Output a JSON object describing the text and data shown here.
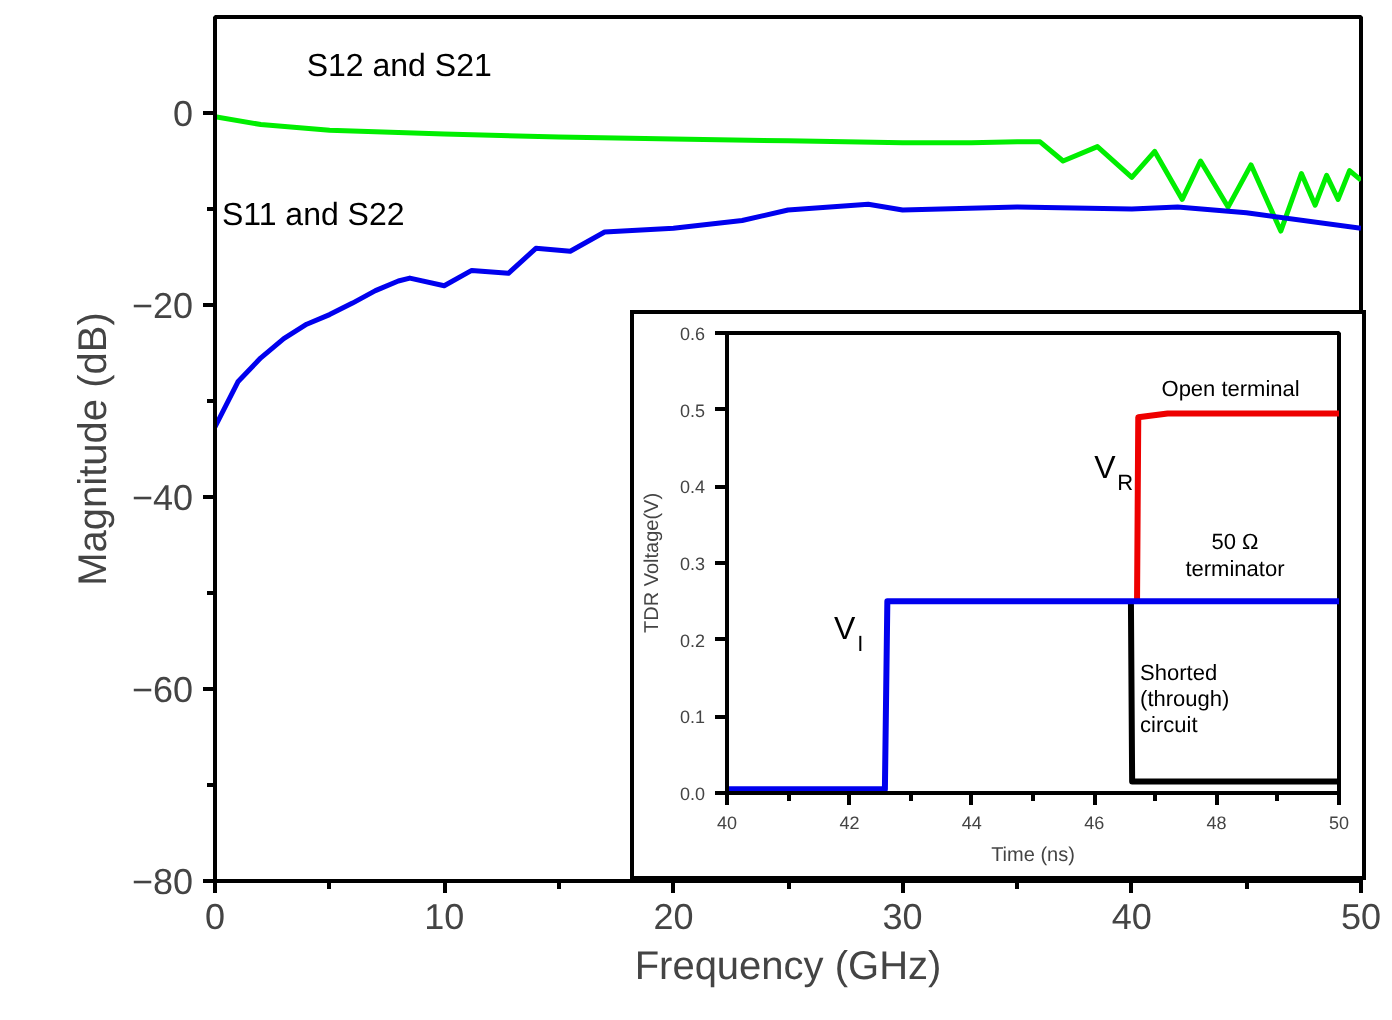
{
  "chart_data": [
    {
      "type": "line",
      "xlabel": "Frequency (GHz)",
      "ylabel": "Magnitude (dB)",
      "xlim": [
        0,
        50
      ],
      "ylim": [
        -80,
        10
      ],
      "xticks": [
        0,
        {
          "value": 5,
          "label": null
        },
        10,
        {
          "value": 15,
          "label": null
        },
        20,
        {
          "value": 25,
          "label": null
        },
        30,
        {
          "value": 35,
          "label": null
        },
        40,
        {
          "value": 45,
          "label": null
        },
        50
      ],
      "yticks": [
        -80,
        {
          "value": -70,
          "label": null
        },
        -60,
        {
          "value": -50,
          "label": null
        },
        -40,
        {
          "value": -30,
          "label": null
        },
        -20,
        {
          "value": -10,
          "label": null
        },
        0
      ],
      "grid": false,
      "legend": false,
      "series": [
        {
          "name": "S12 and S21",
          "color": "#00ee00",
          "x": [
            0,
            2,
            5,
            10,
            15,
            20,
            25,
            30,
            33,
            35,
            36,
            37,
            38.5,
            40,
            41,
            42.2,
            43,
            44.2,
            45.2,
            46.5,
            47.4,
            48,
            48.5,
            49,
            49.5,
            50
          ],
          "values": [
            -0.4,
            -1.2,
            -1.8,
            -2.2,
            -2.5,
            -2.7,
            -2.9,
            -3.1,
            -3.1,
            -3.0,
            -3.0,
            -5.0,
            -3.5,
            -6.7,
            -4.0,
            -9.0,
            -5.0,
            -9.8,
            -5.4,
            -12.3,
            -6.3,
            -9.6,
            -6.5,
            -9.0,
            -6.0,
            -7.0
          ]
        },
        {
          "name": "S11 and S22",
          "color": "#0000ee",
          "x": [
            0,
            1,
            2,
            3,
            4,
            5,
            6,
            7,
            8,
            8.5,
            10,
            11.2,
            12.8,
            14,
            15.5,
            17,
            20,
            23,
            25,
            28.5,
            30,
            35,
            40,
            42,
            45,
            50
          ],
          "values": [
            -32.7,
            -28,
            -25.5,
            -23.5,
            -22,
            -21,
            -19.8,
            -18.5,
            -17.5,
            -17.2,
            -18,
            -16.4,
            -16.7,
            -14.1,
            -14.4,
            -12.4,
            -12,
            -11.2,
            -10.1,
            -9.5,
            -10.1,
            -9.8,
            -10,
            -9.8,
            -10.4,
            -12
          ]
        }
      ]
    },
    {
      "type": "line",
      "xlabel": "Time (ns)",
      "ylabel": "TDR Voltage(V)",
      "xlim": [
        40,
        50
      ],
      "ylim": [
        0,
        0.6
      ],
      "xticks": [
        40,
        {
          "value": 41,
          "label": null
        },
        42,
        {
          "value": 43,
          "label": null
        },
        44,
        {
          "value": 45,
          "label": null
        },
        46,
        {
          "value": 47,
          "label": null
        },
        48,
        {
          "value": 49,
          "label": null
        },
        50
      ],
      "yticks": [
        {
          "value": 0,
          "label": "0.0"
        },
        0.1,
        0.2,
        0.3,
        0.4,
        0.5,
        0.6
      ],
      "grid": false,
      "legend": false,
      "annotations": [
        "V$_{I}$",
        "V$_{R}$"
      ],
      "series": [
        {
          "name": "Shorted (through) circuit",
          "color": "#000000",
          "x": [
            46.6,
            46.62,
            50
          ],
          "values": [
            0.25,
            0.015,
            0.015
          ]
        },
        {
          "name": "Open terminal",
          "color": "#ee0000",
          "x": [
            46.7,
            46.72,
            47.2,
            50
          ],
          "values": [
            0.25,
            0.49,
            0.495,
            0.495
          ]
        },
        {
          "name": "50 Ω terminator",
          "color": "#0000ee",
          "x": [
            40,
            42.58,
            42.62,
            50
          ],
          "values": [
            0.005,
            0.005,
            0.25,
            0.25
          ]
        }
      ]
    }
  ]
}
